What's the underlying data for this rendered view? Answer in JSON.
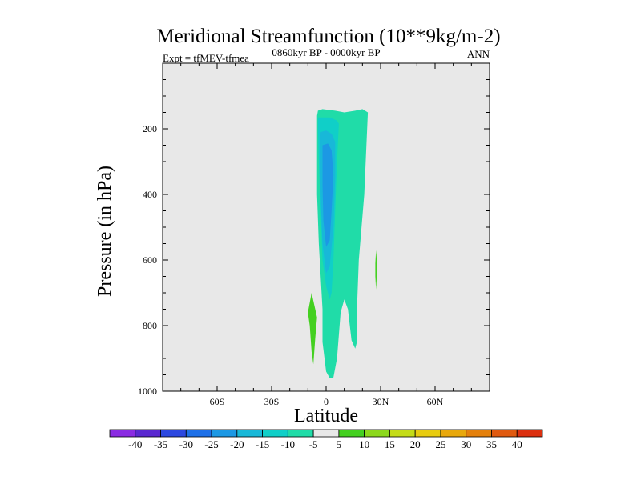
{
  "chart_data": {
    "type": "filled-contour",
    "title": "Meridional Streamfunction (10**9kg/m-2)",
    "subtitle_left": "Expt = tfMEV-tfmea",
    "subtitle_center": "0860kyr BP - 0000kyr BP",
    "subtitle_right": "ANN",
    "xlabel": "Latitude",
    "ylabel": "Pressure (in hPa)",
    "xlim": [
      -90,
      90
    ],
    "ylim": [
      1000,
      0
    ],
    "x_ticks": [
      {
        "value": -60,
        "label": "60S"
      },
      {
        "value": -30,
        "label": "30S"
      },
      {
        "value": 0,
        "label": "0"
      },
      {
        "value": 30,
        "label": "30N"
      },
      {
        "value": 60,
        "label": "60N"
      }
    ],
    "y_ticks": [
      {
        "value": 200,
        "label": "200"
      },
      {
        "value": 400,
        "label": "400"
      },
      {
        "value": 600,
        "label": "600"
      },
      {
        "value": 800,
        "label": "800"
      },
      {
        "value": 1000,
        "label": "1000"
      }
    ],
    "background_color": "#e8e8e8",
    "colorbar": {
      "labels": [
        "-40",
        "-35",
        "-30",
        "-25",
        "-20",
        "-15",
        "-10",
        "-5",
        "5",
        "10",
        "15",
        "20",
        "25",
        "30",
        "35",
        "40"
      ],
      "colors": [
        "#8a2be2",
        "#5a28d0",
        "#2c48e0",
        "#1e70e8",
        "#1c98e4",
        "#18b8d8",
        "#10cfc8",
        "#20dca8",
        "#e8e8e8",
        "#44d020",
        "#8cd81c",
        "#c4dc18",
        "#e8cc10",
        "#e8a80c",
        "#e4800c",
        "#e05a10",
        "#dc3010"
      ]
    },
    "regions": [
      {
        "name": "weak-negative-core",
        "level": "-10 to -5",
        "color": "#20dca8",
        "points": [
          [
            -4.5,
            145
          ],
          [
            -2,
            140
          ],
          [
            5,
            145
          ],
          [
            10,
            150
          ],
          [
            16,
            145
          ],
          [
            20,
            140
          ],
          [
            23,
            150
          ],
          [
            21,
            400
          ],
          [
            18,
            600
          ],
          [
            17,
            750
          ],
          [
            17,
            850
          ],
          [
            16,
            870
          ],
          [
            14,
            845
          ],
          [
            12,
            750
          ],
          [
            10,
            720
          ],
          [
            8,
            760
          ],
          [
            6,
            900
          ],
          [
            4,
            958
          ],
          [
            2,
            960
          ],
          [
            0,
            940
          ],
          [
            -2,
            850
          ],
          [
            -2,
            750
          ],
          [
            -3,
            650
          ],
          [
            -4,
            550
          ],
          [
            -5,
            400
          ],
          [
            -5,
            250
          ],
          [
            -5,
            160
          ]
        ]
      },
      {
        "name": "moderate-negative-core",
        "level": "-15 to -10",
        "color": "#10cfc8",
        "points": [
          [
            -4.5,
            165
          ],
          [
            -2,
            165
          ],
          [
            2,
            165
          ],
          [
            6,
            175
          ],
          [
            7,
            185
          ],
          [
            6,
            300
          ],
          [
            5,
            450
          ],
          [
            4,
            600
          ],
          [
            3,
            700
          ],
          [
            2,
            720
          ],
          [
            0,
            680
          ],
          [
            -2,
            600
          ],
          [
            -3,
            450
          ],
          [
            -4,
            300
          ],
          [
            -4.5,
            200
          ]
        ]
      },
      {
        "name": "strong-negative-core",
        "level": "-20 to -15",
        "color": "#18b8d8",
        "points": [
          [
            -3,
            210
          ],
          [
            0,
            205
          ],
          [
            3,
            215
          ],
          [
            5,
            240
          ],
          [
            5,
            350
          ],
          [
            4,
            500
          ],
          [
            2,
            620
          ],
          [
            0,
            640
          ],
          [
            -2,
            550
          ],
          [
            -3,
            400
          ],
          [
            -3.5,
            280
          ]
        ]
      },
      {
        "name": "peak-negative-core",
        "level": "-25 to -20",
        "color": "#1c98e4",
        "points": [
          [
            -2,
            250
          ],
          [
            1,
            245
          ],
          [
            3,
            265
          ],
          [
            4,
            340
          ],
          [
            3,
            450
          ],
          [
            2,
            540
          ],
          [
            0,
            560
          ],
          [
            -1.5,
            480
          ],
          [
            -2,
            370
          ]
        ]
      },
      {
        "name": "positive-lobe-south",
        "level": "5 to 10",
        "color": "#44d020",
        "points": [
          [
            -8,
            700
          ],
          [
            -5,
            775
          ],
          [
            -6,
            840
          ],
          [
            -7,
            918
          ],
          [
            -8,
            880
          ],
          [
            -9,
            800
          ],
          [
            -10,
            760
          ],
          [
            -9,
            730
          ]
        ]
      },
      {
        "name": "positive-lobe-north",
        "level": "5 to 10",
        "color": "#44d020",
        "points": [
          [
            27.5,
            570
          ],
          [
            27.9,
            600
          ],
          [
            27.9,
            650
          ],
          [
            27.5,
            690
          ],
          [
            27.1,
            650
          ],
          [
            27.1,
            610
          ]
        ]
      }
    ]
  }
}
